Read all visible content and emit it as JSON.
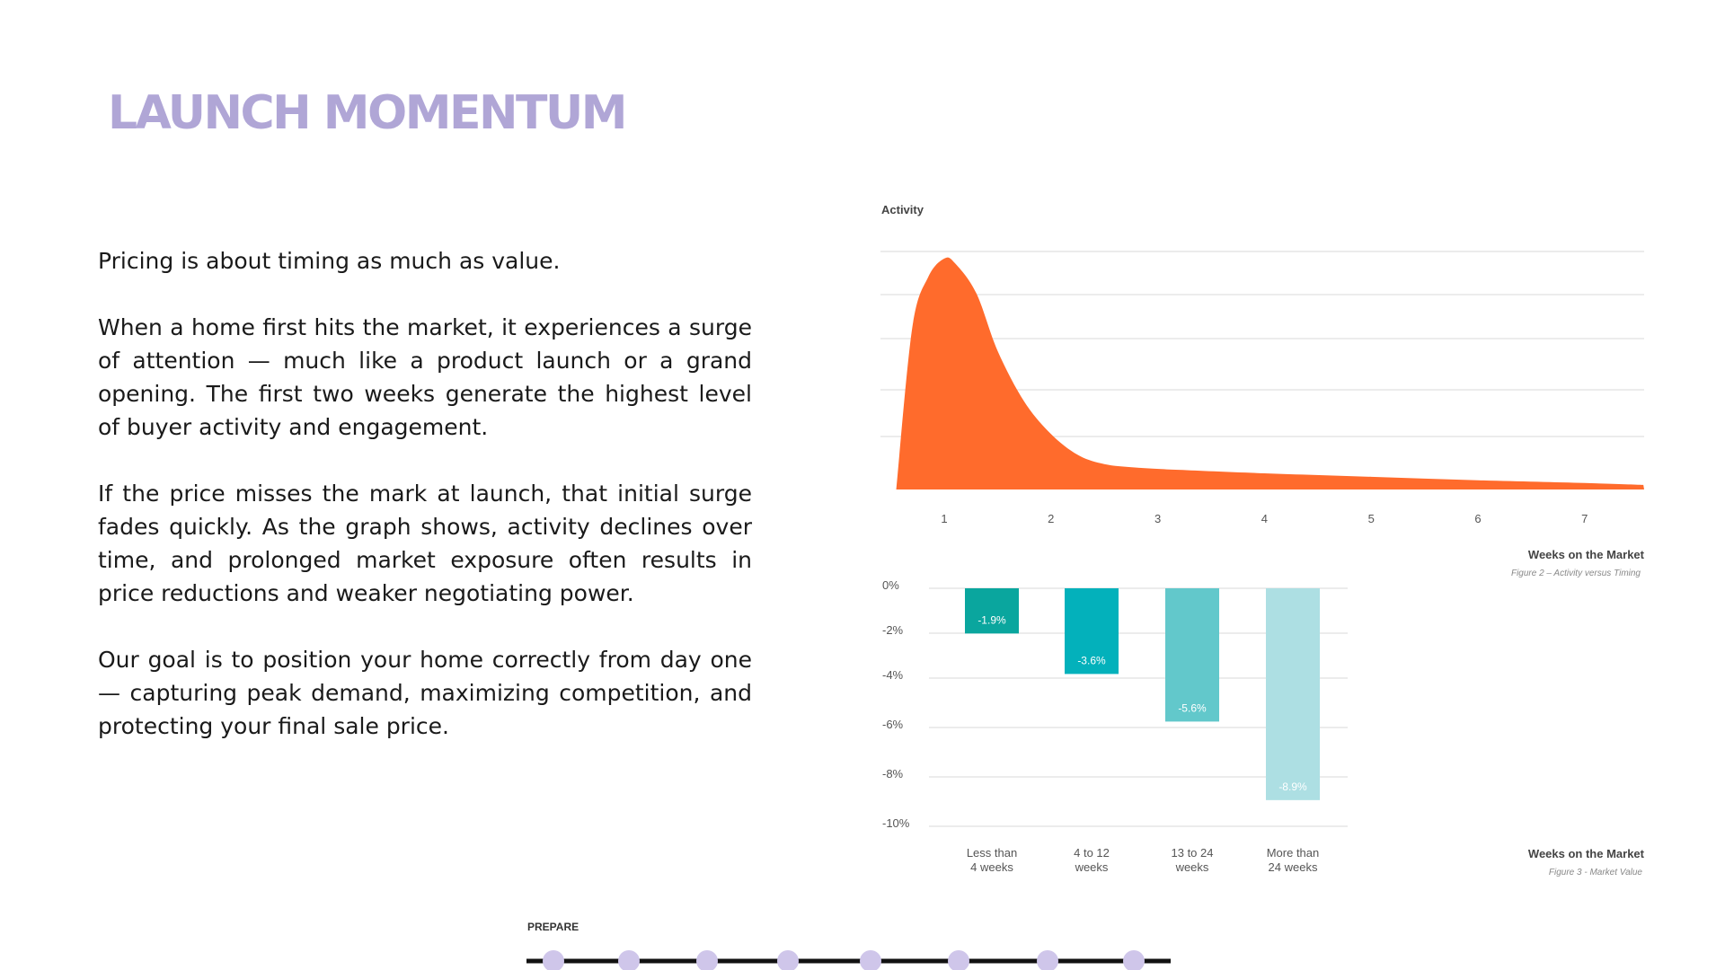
{
  "title": "LAUNCH MOMENTUM",
  "body": {
    "paragraphs": [
      "Pricing is about timing as much as value.",
      "When a home first hits the market, it experiences a surge of attention — much like a product launch or a grand opening. The first two weeks generate the highest level of buyer activity and engagement.",
      "If the price misses the mark at launch, that initial surge fades quickly. As the graph shows, activity declines over time, and prolonged market exposure often results in price reductions and weaker negotiating power.",
      "Our goal is to position your home correctly from day one — capturing peak demand, maximizing competition, and protecting your final sale price."
    ]
  },
  "chart_data": [
    {
      "type": "area",
      "title": "Activity",
      "ylabel": "Activity",
      "xlabel": "Weeks on the Market",
      "caption": "Figure 2 – Activity versus Timing",
      "x_ticks": [
        "1",
        "2",
        "3",
        "4",
        "5",
        "6",
        "7"
      ],
      "x": [
        0.55,
        0.7,
        0.85,
        1.0,
        1.1,
        1.3,
        1.5,
        1.75,
        2.0,
        2.25,
        2.5,
        2.8,
        3.2,
        4.0,
        5.0,
        6.0,
        7.0,
        7.55
      ],
      "y": [
        0.0,
        0.7,
        0.92,
        1.0,
        0.98,
        0.85,
        0.6,
        0.38,
        0.24,
        0.15,
        0.11,
        0.095,
        0.085,
        0.07,
        0.055,
        0.04,
        0.028,
        0.02
      ],
      "ylim": [
        0,
        1.05
      ],
      "grid": true,
      "color": "#ff6b2c"
    },
    {
      "type": "bar",
      "xlabel": "Weeks on the Market",
      "caption": "Figure 3 - Market Value",
      "categories": [
        [
          "Less than",
          "4 weeks"
        ],
        [
          "4 to 12",
          "weeks"
        ],
        [
          "13 to 24",
          "weeks"
        ],
        [
          "More than",
          "24 weeks"
        ]
      ],
      "values": [
        -1.9,
        -3.6,
        -5.6,
        -8.9
      ],
      "labels": [
        "-1.9%",
        "-3.6%",
        "-5.6%",
        "-8.9%"
      ],
      "y_ticks": [
        "0%",
        "-2%",
        "-4%",
        "-6%",
        "-8%",
        "-10%"
      ],
      "ylim": [
        -10,
        0
      ],
      "grid": true,
      "colors": [
        "#0aa69e",
        "#03b1bb",
        "#62c8cb",
        "#addfe3"
      ]
    }
  ],
  "progress": {
    "label": "PREPARE",
    "steps": 8,
    "dot_color": "#cfc6ea",
    "line_color": "#111111"
  }
}
